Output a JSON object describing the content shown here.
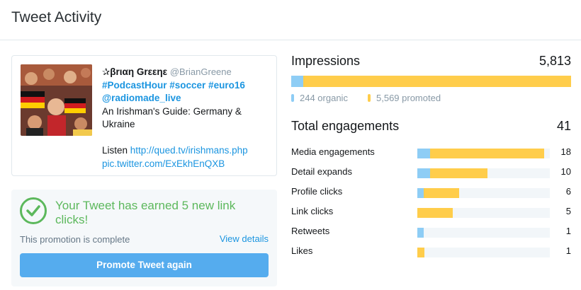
{
  "header": {
    "title": "Tweet Activity"
  },
  "tweet": {
    "author_name": "✰βrιαη Grεεηε",
    "author_handle": "@BrianGreene",
    "hashtags_line1": "#PodcastHour #soccer #euro16",
    "mention": "@radiomade_live",
    "text": "An Irishman's Guide: Germany & Ukraine",
    "listen_prefix": "Listen ",
    "link": "http://qued.tv/irishmans.php",
    "pic_link": "pic.twitter.com/ExEkhEnQXB"
  },
  "promotion": {
    "headline": "Your Tweet has earned 5 new link clicks!",
    "status": "This promotion is complete",
    "view_details": "View details",
    "button": "Promote Tweet again"
  },
  "impressions": {
    "label": "Impressions",
    "total": "5,813",
    "organic": 244,
    "promoted": 5569,
    "organic_label": "244 organic",
    "promoted_label": "5,569 promoted"
  },
  "engagements": {
    "label": "Total engagements",
    "total": "41",
    "scale_max": 41,
    "rows": [
      {
        "label": "Media engagements",
        "value": "18",
        "organic": 2,
        "promoted": 16
      },
      {
        "label": "Detail expands",
        "value": "10",
        "organic": 2,
        "promoted": 8
      },
      {
        "label": "Profile clicks",
        "value": "6",
        "organic": 1,
        "promoted": 5
      },
      {
        "label": "Link clicks",
        "value": "5",
        "organic": 0,
        "promoted": 5
      },
      {
        "label": "Retweets",
        "value": "1",
        "organic": 1,
        "promoted": 0
      },
      {
        "label": "Likes",
        "value": "1",
        "organic": 0,
        "promoted": 1
      }
    ]
  },
  "colors": {
    "organic": "#8ecdf5",
    "promoted": "#ffcd4b",
    "success": "#5cb85c",
    "link": "#1b95e0",
    "button": "#55acee"
  }
}
